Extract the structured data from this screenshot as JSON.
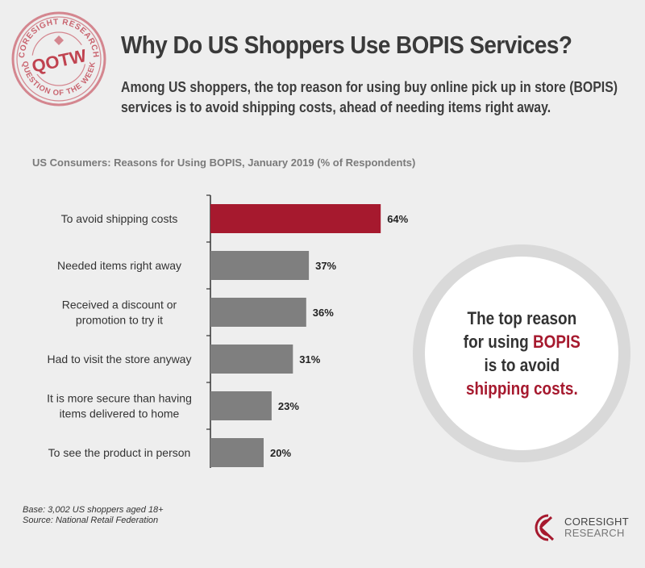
{
  "header": {
    "stamp_top": "CORESIGHT RESEARCH",
    "stamp_center": "QOTW",
    "stamp_bottom": "QUESTION OF THE WEEK",
    "title": "Why Do US Shoppers Use BOPIS Services?",
    "subtitle": "Among US shoppers, the top reason for using buy online pick up in store (BOPIS) services is to avoid shipping costs, ahead of needing items right away."
  },
  "chart_data": {
    "type": "bar",
    "orientation": "horizontal",
    "title": "US Consumers: Reasons for Using BOPIS, January 2019 (% of Respondents)",
    "categories": [
      [
        "To avoid shipping costs"
      ],
      [
        "Needed items right away"
      ],
      [
        "Received a discount or",
        "promotion to try it"
      ],
      [
        "Had to visit the store anyway"
      ],
      [
        "It is more secure than having",
        "items delivered to home"
      ],
      [
        "To see the product in person"
      ]
    ],
    "values": [
      64,
      37,
      36,
      31,
      23,
      20
    ],
    "value_labels": [
      "64%",
      "37%",
      "36%",
      "31%",
      "23%",
      "20%"
    ],
    "highlight_index": 0,
    "colors": {
      "highlight": "#a6192e",
      "default": "#7f7f7f"
    },
    "xlim": [
      0,
      100
    ],
    "grid": false,
    "legend": "none"
  },
  "callout": {
    "line1": "The top reason",
    "line2_pre": "for using ",
    "line2_hl": "BOPIS",
    "line3": "is to avoid",
    "line4_hl": "shipping costs.",
    "accent": "#a6192e"
  },
  "notes": {
    "base": "Base: 3,002 US shoppers aged 18+",
    "source": "Source: National Retail Federation"
  },
  "brand": {
    "line1": "CORESIGHT",
    "line2": "RESEARCH",
    "accent": "#a6192e"
  }
}
